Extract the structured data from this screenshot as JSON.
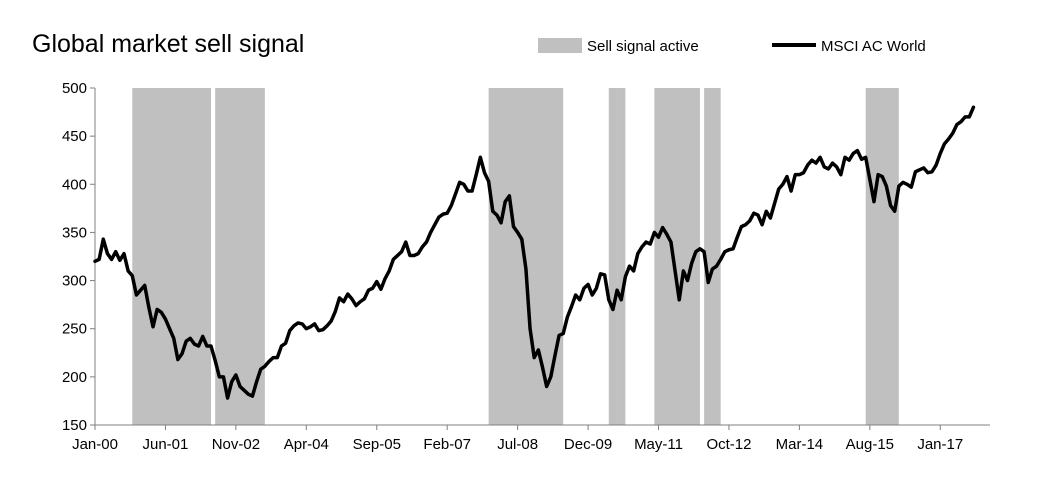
{
  "chart_data": {
    "type": "line",
    "title": "Global market sell signal",
    "xlabel": "",
    "ylabel": "",
    "ylim": [
      150,
      500
    ],
    "yticks": [
      150,
      200,
      250,
      300,
      350,
      400,
      450,
      500
    ],
    "xlim": [
      "2000-01",
      "2017-12"
    ],
    "xticks": [
      {
        "date": "2000-01",
        "label": "Jan-00"
      },
      {
        "date": "2001-06",
        "label": "Jun-01"
      },
      {
        "date": "2002-11",
        "label": "Nov-02"
      },
      {
        "date": "2004-04",
        "label": "Apr-04"
      },
      {
        "date": "2005-09",
        "label": "Sep-05"
      },
      {
        "date": "2007-02",
        "label": "Feb-07"
      },
      {
        "date": "2008-07",
        "label": "Jul-08"
      },
      {
        "date": "2009-12",
        "label": "Dec-09"
      },
      {
        "date": "2011-05",
        "label": "May-11"
      },
      {
        "date": "2012-10",
        "label": "Oct-12"
      },
      {
        "date": "2014-03",
        "label": "Mar-14"
      },
      {
        "date": "2015-08",
        "label": "Aug-15"
      },
      {
        "date": "2017-01",
        "label": "Jan-17"
      }
    ],
    "grid": false,
    "legend": {
      "placement": "top-right",
      "entries": [
        {
          "label": "Sell signal active",
          "kind": "band",
          "color": "#c0c0c0"
        },
        {
          "label": "MSCI AC World",
          "kind": "line",
          "color": "#000000"
        }
      ]
    },
    "sell_signal_periods": [
      {
        "start": "2000-10",
        "end": "2002-04"
      },
      {
        "start": "2002-06",
        "end": "2003-05"
      },
      {
        "start": "2007-12",
        "end": "2009-05"
      },
      {
        "start": "2010-05",
        "end": "2010-06"
      },
      {
        "start": "2010-07",
        "end": "2010-08"
      },
      {
        "start": "2011-04",
        "end": "2012-02"
      },
      {
        "start": "2012-04",
        "end": "2012-07"
      },
      {
        "start": "2015-07",
        "end": "2015-08"
      },
      {
        "start": "2015-09",
        "end": "2016-02"
      }
    ],
    "series": [
      {
        "name": "MSCI AC World",
        "color": "#000000",
        "points": [
          [
            "2000-01",
            320
          ],
          [
            "2000-02",
            322
          ],
          [
            "2000-03",
            343
          ],
          [
            "2000-04",
            328
          ],
          [
            "2000-05",
            322
          ],
          [
            "2000-06",
            330
          ],
          [
            "2000-07",
            321
          ],
          [
            "2000-08",
            328
          ],
          [
            "2000-09",
            310
          ],
          [
            "2000-10",
            305
          ],
          [
            "2000-11",
            285
          ],
          [
            "2000-12",
            290
          ],
          [
            "2001-01",
            295
          ],
          [
            "2001-02",
            272
          ],
          [
            "2001-03",
            252
          ],
          [
            "2001-04",
            270
          ],
          [
            "2001-05",
            267
          ],
          [
            "2001-06",
            260
          ],
          [
            "2001-07",
            250
          ],
          [
            "2001-08",
            240
          ],
          [
            "2001-09",
            218
          ],
          [
            "2001-10",
            224
          ],
          [
            "2001-11",
            237
          ],
          [
            "2001-12",
            240
          ],
          [
            "2002-01",
            234
          ],
          [
            "2002-02",
            232
          ],
          [
            "2002-03",
            242
          ],
          [
            "2002-04",
            232
          ],
          [
            "2002-05",
            232
          ],
          [
            "2002-06",
            217
          ],
          [
            "2002-07",
            200
          ],
          [
            "2002-08",
            200
          ],
          [
            "2002-09",
            178
          ],
          [
            "2002-10",
            195
          ],
          [
            "2002-11",
            202
          ],
          [
            "2002-12",
            190
          ],
          [
            "2003-01",
            186
          ],
          [
            "2003-02",
            182
          ],
          [
            "2003-03",
            180
          ],
          [
            "2003-04",
            195
          ],
          [
            "2003-05",
            208
          ],
          [
            "2003-06",
            211
          ],
          [
            "2003-07",
            216
          ],
          [
            "2003-08",
            220
          ],
          [
            "2003-09",
            220
          ],
          [
            "2003-10",
            232
          ],
          [
            "2003-11",
            235
          ],
          [
            "2003-12",
            248
          ],
          [
            "2004-01",
            253
          ],
          [
            "2004-02",
            256
          ],
          [
            "2004-03",
            255
          ],
          [
            "2004-04",
            250
          ],
          [
            "2004-05",
            252
          ],
          [
            "2004-06",
            255
          ],
          [
            "2004-07",
            248
          ],
          [
            "2004-08",
            249
          ],
          [
            "2004-09",
            253
          ],
          [
            "2004-10",
            258
          ],
          [
            "2004-11",
            268
          ],
          [
            "2004-12",
            282
          ],
          [
            "2005-01",
            278
          ],
          [
            "2005-02",
            286
          ],
          [
            "2005-03",
            281
          ],
          [
            "2005-04",
            274
          ],
          [
            "2005-05",
            278
          ],
          [
            "2005-06",
            281
          ],
          [
            "2005-07",
            290
          ],
          [
            "2005-08",
            292
          ],
          [
            "2005-09",
            299
          ],
          [
            "2005-10",
            291
          ],
          [
            "2005-11",
            302
          ],
          [
            "2005-12",
            310
          ],
          [
            "2006-01",
            322
          ],
          [
            "2006-02",
            326
          ],
          [
            "2006-03",
            330
          ],
          [
            "2006-04",
            340
          ],
          [
            "2006-05",
            326
          ],
          [
            "2006-06",
            326
          ],
          [
            "2006-07",
            328
          ],
          [
            "2006-08",
            335
          ],
          [
            "2006-09",
            340
          ],
          [
            "2006-10",
            350
          ],
          [
            "2006-11",
            358
          ],
          [
            "2006-12",
            366
          ],
          [
            "2007-01",
            369
          ],
          [
            "2007-02",
            370
          ],
          [
            "2007-03",
            378
          ],
          [
            "2007-04",
            390
          ],
          [
            "2007-05",
            402
          ],
          [
            "2007-06",
            400
          ],
          [
            "2007-07",
            393
          ],
          [
            "2007-08",
            393
          ],
          [
            "2007-09",
            410
          ],
          [
            "2007-10",
            428
          ],
          [
            "2007-11",
            412
          ],
          [
            "2007-12",
            403
          ],
          [
            "2008-01",
            372
          ],
          [
            "2008-02",
            368
          ],
          [
            "2008-03",
            360
          ],
          [
            "2008-04",
            382
          ],
          [
            "2008-05",
            388
          ],
          [
            "2008-06",
            356
          ],
          [
            "2008-07",
            350
          ],
          [
            "2008-08",
            343
          ],
          [
            "2008-09",
            312
          ],
          [
            "2008-10",
            250
          ],
          [
            "2008-11",
            220
          ],
          [
            "2008-12",
            228
          ],
          [
            "2009-01",
            210
          ],
          [
            "2009-02",
            190
          ],
          [
            "2009-03",
            200
          ],
          [
            "2009-04",
            222
          ],
          [
            "2009-05",
            243
          ],
          [
            "2009-06",
            245
          ],
          [
            "2009-07",
            262
          ],
          [
            "2009-08",
            273
          ],
          [
            "2009-09",
            285
          ],
          [
            "2009-10",
            280
          ],
          [
            "2009-11",
            292
          ],
          [
            "2009-12",
            296
          ],
          [
            "2010-01",
            285
          ],
          [
            "2010-02",
            292
          ],
          [
            "2010-03",
            307
          ],
          [
            "2010-04",
            306
          ],
          [
            "2010-05",
            280
          ],
          [
            "2010-06",
            270
          ],
          [
            "2010-07",
            290
          ],
          [
            "2010-08",
            280
          ],
          [
            "2010-09",
            304
          ],
          [
            "2010-10",
            315
          ],
          [
            "2010-11",
            310
          ],
          [
            "2010-12",
            328
          ],
          [
            "2011-01",
            335
          ],
          [
            "2011-02",
            340
          ],
          [
            "2011-03",
            338
          ],
          [
            "2011-04",
            350
          ],
          [
            "2011-05",
            345
          ],
          [
            "2011-06",
            355
          ],
          [
            "2011-07",
            348
          ],
          [
            "2011-08",
            340
          ],
          [
            "2011-09",
            310
          ],
          [
            "2011-10",
            280
          ],
          [
            "2011-11",
            310
          ],
          [
            "2011-12",
            300
          ],
          [
            "2012-01",
            318
          ],
          [
            "2012-02",
            330
          ],
          [
            "2012-03",
            333
          ],
          [
            "2012-04",
            330
          ],
          [
            "2012-05",
            298
          ],
          [
            "2012-06",
            312
          ],
          [
            "2012-07",
            315
          ],
          [
            "2012-08",
            322
          ],
          [
            "2012-09",
            330
          ],
          [
            "2012-10",
            332
          ],
          [
            "2012-11",
            333
          ],
          [
            "2012-12",
            345
          ],
          [
            "2013-01",
            356
          ],
          [
            "2013-02",
            358
          ],
          [
            "2013-03",
            362
          ],
          [
            "2013-04",
            370
          ],
          [
            "2013-05",
            368
          ],
          [
            "2013-06",
            358
          ],
          [
            "2013-07",
            372
          ],
          [
            "2013-08",
            365
          ],
          [
            "2013-09",
            380
          ],
          [
            "2013-10",
            395
          ],
          [
            "2013-11",
            400
          ],
          [
            "2013-12",
            408
          ],
          [
            "2014-01",
            393
          ],
          [
            "2014-02",
            410
          ],
          [
            "2014-03",
            410
          ],
          [
            "2014-04",
            412
          ],
          [
            "2014-05",
            420
          ],
          [
            "2014-06",
            425
          ],
          [
            "2014-07",
            422
          ],
          [
            "2014-08",
            428
          ],
          [
            "2014-09",
            418
          ],
          [
            "2014-10",
            416
          ],
          [
            "2014-11",
            422
          ],
          [
            "2014-12",
            418
          ],
          [
            "2015-01",
            410
          ],
          [
            "2015-02",
            428
          ],
          [
            "2015-03",
            425
          ],
          [
            "2015-04",
            432
          ],
          [
            "2015-05",
            435
          ],
          [
            "2015-06",
            426
          ],
          [
            "2015-07",
            428
          ],
          [
            "2015-08",
            405
          ],
          [
            "2015-09",
            382
          ],
          [
            "2015-10",
            410
          ],
          [
            "2015-11",
            408
          ],
          [
            "2015-12",
            398
          ],
          [
            "2016-01",
            378
          ],
          [
            "2016-02",
            372
          ],
          [
            "2016-03",
            398
          ],
          [
            "2016-04",
            402
          ],
          [
            "2016-05",
            400
          ],
          [
            "2016-06",
            397
          ],
          [
            "2016-07",
            413
          ],
          [
            "2016-08",
            415
          ],
          [
            "2016-09",
            417
          ],
          [
            "2016-10",
            412
          ],
          [
            "2016-11",
            413
          ],
          [
            "2016-12",
            420
          ],
          [
            "2017-01",
            432
          ],
          [
            "2017-02",
            442
          ],
          [
            "2017-03",
            447
          ],
          [
            "2017-04",
            453
          ],
          [
            "2017-05",
            462
          ],
          [
            "2017-06",
            465
          ],
          [
            "2017-07",
            470
          ],
          [
            "2017-08",
            470
          ],
          [
            "2017-09",
            480
          ]
        ]
      }
    ]
  }
}
